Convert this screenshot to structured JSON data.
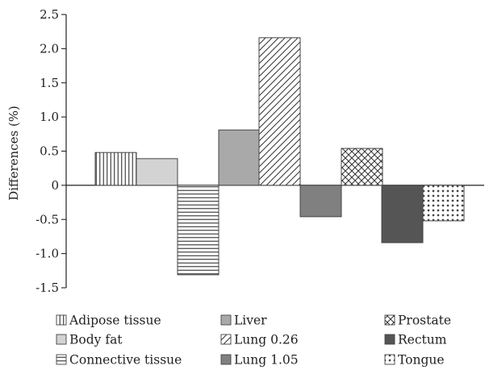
{
  "chart_data": {
    "type": "bar",
    "ylabel": "Differences (%)",
    "xlabel": "",
    "ylim": [
      -1.5,
      2.5
    ],
    "yticks": [
      "2.5",
      "2.0",
      "1.5",
      "1.0",
      "0.5",
      "0",
      "-0.5",
      "-1.0",
      "-1.5"
    ],
    "ytick_values": [
      2.5,
      2.0,
      1.5,
      1.0,
      0.5,
      0,
      -0.5,
      -1.0,
      -1.5
    ],
    "legend_position": "bottom",
    "series": [
      {
        "name": "Adipose tissue",
        "value": 0.48,
        "color": "#ffffff",
        "pattern": "vertical-lines"
      },
      {
        "name": "Body fat",
        "value": 0.39,
        "color": "#d3d3d3",
        "pattern": "solid"
      },
      {
        "name": "Connective tissue",
        "value": -1.31,
        "color": "#ffffff",
        "pattern": "horizontal-lines"
      },
      {
        "name": "Liver",
        "value": 0.81,
        "color": "#a9a9a9",
        "pattern": "solid"
      },
      {
        "name": "Lung 0.26",
        "value": 2.16,
        "color": "#ffffff",
        "pattern": "diagonal-lines"
      },
      {
        "name": "Lung 1.05",
        "value": -0.46,
        "color": "#808080",
        "pattern": "solid"
      },
      {
        "name": "Prostate",
        "value": 0.54,
        "color": "#ffffff",
        "pattern": "crosshatch"
      },
      {
        "name": "Rectum",
        "value": -0.84,
        "color": "#555555",
        "pattern": "solid"
      },
      {
        "name": "Tongue",
        "value": -0.52,
        "color": "#ffffff",
        "pattern": "dots"
      }
    ]
  }
}
